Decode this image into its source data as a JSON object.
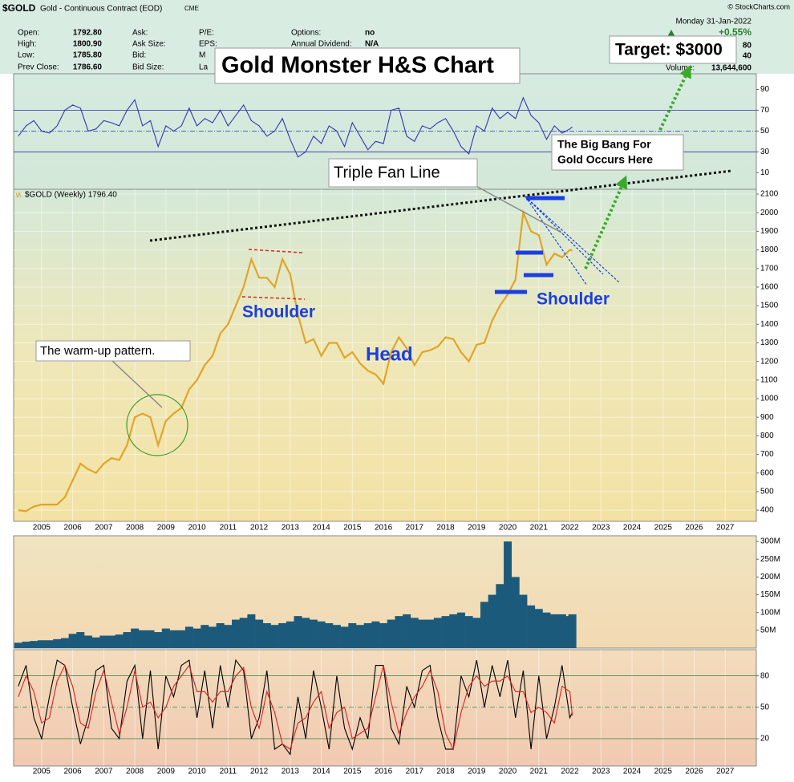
{
  "header": {
    "symbol": "$GOLD",
    "description": "Gold - Continuous Contract (EOD)",
    "exchange": "CME",
    "copyright": "© StockCharts.com",
    "date": "Monday  31-Jan-2022",
    "change": "+0.55%",
    "quote": [
      [
        "Open:",
        "1792.80"
      ],
      [
        "High:",
        "1800.90"
      ],
      [
        "Low:",
        "1785.80"
      ],
      [
        "Prev Close:",
        "1786.60"
      ]
    ],
    "quote2": [
      "Ask:",
      "Ask Size:",
      "Bid:",
      "Bid Size:"
    ],
    "quote3": [
      "P/E:",
      "EPS:",
      "M",
      "La"
    ],
    "quote4": [
      [
        "Options:",
        "no"
      ],
      [
        "Annual Dividend:",
        "N/A"
      ]
    ],
    "right": [
      "80",
      "40"
    ],
    "volume_label": "Volume:",
    "volume": "13,644,600"
  },
  "chart_data": [
    {
      "type": "line",
      "ylim": [
        -6,
        105
      ],
      "yticks": [
        10,
        30,
        50,
        70,
        90
      ],
      "hlines": [
        70,
        50,
        30
      ],
      "hline_color": "#3030a0",
      "xlim": [
        2004.1,
        2028.0
      ],
      "x": [
        2004.25,
        2004.5,
        2004.75,
        2005,
        2005.25,
        2005.5,
        2005.75,
        2006,
        2006.25,
        2006.5,
        2006.75,
        2007,
        2007.25,
        2007.5,
        2007.75,
        2008,
        2008.25,
        2008.5,
        2008.75,
        2009,
        2009.25,
        2009.5,
        2009.75,
        2010,
        2010.25,
        2010.5,
        2010.75,
        2011,
        2011.25,
        2011.5,
        2011.75,
        2012,
        2012.25,
        2012.5,
        2012.75,
        2013,
        2013.25,
        2013.5,
        2013.75,
        2014,
        2014.25,
        2014.5,
        2014.75,
        2015,
        2015.25,
        2015.5,
        2015.75,
        2016,
        2016.25,
        2016.5,
        2016.75,
        2017,
        2017.25,
        2017.5,
        2017.75,
        2018,
        2018.25,
        2018.5,
        2018.75,
        2019,
        2019.25,
        2019.5,
        2019.75,
        2020,
        2020.25,
        2020.5,
        2020.75,
        2021,
        2021.25,
        2021.5,
        2021.75,
        2022,
        2022.08
      ],
      "series": [
        {
          "color": "#3535b5",
          "values": [
            45,
            55,
            60,
            50,
            48,
            55,
            70,
            75,
            72,
            50,
            52,
            60,
            58,
            55,
            70,
            80,
            55,
            60,
            35,
            55,
            50,
            55,
            72,
            55,
            62,
            58,
            70,
            55,
            65,
            75,
            60,
            55,
            45,
            50,
            62,
            42,
            25,
            30,
            45,
            38,
            55,
            50,
            35,
            58,
            45,
            32,
            40,
            38,
            70,
            72,
            45,
            40,
            55,
            52,
            58,
            62,
            50,
            35,
            28,
            55,
            50,
            72,
            62,
            68,
            62,
            82,
            65,
            58,
            42,
            55,
            48,
            52,
            54
          ]
        }
      ]
    },
    {
      "type": "line",
      "title": "Gold Monster H&S Chart",
      "ylim": [
        340,
        2126
      ],
      "xlim": [
        2004.1,
        2028.0
      ],
      "grid": true,
      "yticks": [
        400,
        500,
        600,
        700,
        800,
        900,
        1000,
        1100,
        1200,
        1300,
        1400,
        1500,
        1600,
        1700,
        1800,
        1900,
        2000,
        2100
      ],
      "xticks": [
        2005,
        2006,
        2007,
        2008,
        2009,
        2010,
        2011,
        2012,
        2013,
        2014,
        2015,
        2016,
        2017,
        2018,
        2019,
        2020,
        2021,
        2022,
        2023,
        2024,
        2025,
        2026,
        2027
      ],
      "x": [
        2004.25,
        2004.5,
        2004.75,
        2005,
        2005.25,
        2005.5,
        2005.75,
        2006,
        2006.25,
        2006.5,
        2006.75,
        2007,
        2007.25,
        2007.5,
        2007.75,
        2008,
        2008.25,
        2008.5,
        2008.75,
        2009,
        2009.25,
        2009.5,
        2009.75,
        2010,
        2010.25,
        2010.5,
        2010.75,
        2011,
        2011.25,
        2011.5,
        2011.75,
        2012,
        2012.25,
        2012.5,
        2012.75,
        2013,
        2013.25,
        2013.5,
        2013.75,
        2014,
        2014.25,
        2014.5,
        2014.75,
        2015,
        2015.25,
        2015.5,
        2015.75,
        2016,
        2016.25,
        2016.5,
        2016.75,
        2017,
        2017.25,
        2017.5,
        2017.75,
        2018,
        2018.25,
        2018.5,
        2018.75,
        2019,
        2019.25,
        2019.5,
        2019.75,
        2020,
        2020.25,
        2020.5,
        2020.75,
        2021,
        2021.25,
        2021.5,
        2021.75,
        2022,
        2022.08
      ],
      "series": [
        {
          "name": "$GOLD (Weekly) 1796.40",
          "color": "#e0a528",
          "values": [
            400,
            395,
            420,
            430,
            430,
            430,
            470,
            560,
            650,
            620,
            600,
            650,
            680,
            670,
            750,
            900,
            920,
            900,
            750,
            880,
            920,
            950,
            1050,
            1100,
            1180,
            1230,
            1350,
            1400,
            1500,
            1600,
            1750,
            1650,
            1650,
            1600,
            1750,
            1670,
            1450,
            1300,
            1320,
            1230,
            1300,
            1300,
            1220,
            1250,
            1190,
            1150,
            1130,
            1080,
            1250,
            1330,
            1270,
            1180,
            1250,
            1260,
            1280,
            1330,
            1320,
            1250,
            1200,
            1290,
            1300,
            1420,
            1500,
            1560,
            1640,
            2000,
            1900,
            1880,
            1720,
            1780,
            1760,
            1800,
            1796.4
          ]
        }
      ],
      "annotations": [
        "Target: $3000",
        "The Big Bang For",
        "Gold Occurs Here",
        "Triple Fan Line",
        "The warm-up pattern.",
        "Shoulder",
        "Head",
        "Shoulder"
      ]
    },
    {
      "type": "bar",
      "ylim": [
        0,
        316000000
      ],
      "xlim": [
        2004.1,
        2028.0
      ],
      "color": "#1c5a7c",
      "yticks": [
        {
          "value": 50000000,
          "label": "50M"
        },
        {
          "value": 100000000,
          "label": "100M"
        },
        {
          "value": 150000000,
          "label": "150M"
        },
        {
          "value": 200000000,
          "label": "200M"
        },
        {
          "value": 250000000,
          "label": "250M"
        },
        {
          "value": 300000000,
          "label": "300M"
        }
      ],
      "x": [
        2004.25,
        2004.5,
        2004.75,
        2005,
        2005.25,
        2005.5,
        2005.75,
        2006,
        2006.25,
        2006.5,
        2006.75,
        2007,
        2007.25,
        2007.5,
        2007.75,
        2008,
        2008.25,
        2008.5,
        2008.75,
        2009,
        2009.25,
        2009.5,
        2009.75,
        2010,
        2010.25,
        2010.5,
        2010.75,
        2011,
        2011.25,
        2011.5,
        2011.75,
        2012,
        2012.25,
        2012.5,
        2012.75,
        2013,
        2013.25,
        2013.5,
        2013.75,
        2014,
        2014.25,
        2014.5,
        2014.75,
        2015,
        2015.25,
        2015.5,
        2015.75,
        2016,
        2016.25,
        2016.5,
        2016.75,
        2017,
        2017.25,
        2017.5,
        2017.75,
        2018,
        2018.25,
        2018.5,
        2018.75,
        2019,
        2019.25,
        2019.5,
        2019.75,
        2020,
        2020.25,
        2020.5,
        2020.75,
        2021,
        2021.25,
        2021.5,
        2021.75,
        2022,
        2022.08
      ],
      "values": [
        15000000,
        18000000,
        20000000,
        22000000,
        22000000,
        25000000,
        28000000,
        40000000,
        45000000,
        35000000,
        30000000,
        35000000,
        35000000,
        38000000,
        45000000,
        55000000,
        50000000,
        50000000,
        45000000,
        55000000,
        50000000,
        50000000,
        60000000,
        55000000,
        65000000,
        60000000,
        70000000,
        65000000,
        80000000,
        85000000,
        95000000,
        80000000,
        70000000,
        65000000,
        70000000,
        75000000,
        90000000,
        85000000,
        80000000,
        75000000,
        70000000,
        65000000,
        60000000,
        70000000,
        65000000,
        70000000,
        75000000,
        70000000,
        80000000,
        90000000,
        95000000,
        85000000,
        80000000,
        80000000,
        85000000,
        90000000,
        95000000,
        100000000,
        90000000,
        85000000,
        130000000,
        150000000,
        180000000,
        300000000,
        200000000,
        150000000,
        120000000,
        110000000,
        100000000,
        95000000,
        95000000,
        90000000,
        95000000
      ]
    },
    {
      "type": "line",
      "ylim": [
        -6,
        105
      ],
      "yticks": [
        20,
        50,
        80
      ],
      "hlines": [
        80,
        50,
        20
      ],
      "hline_color": "#2e7d32",
      "xlim": [
        2004.1,
        2028.0
      ],
      "grid": true,
      "xticks": [
        2005,
        2006,
        2007,
        2008,
        2009,
        2010,
        2011,
        2012,
        2013,
        2014,
        2015,
        2016,
        2017,
        2018,
        2019,
        2020,
        2021,
        2022,
        2023,
        2024,
        2025,
        2026,
        2027
      ],
      "x": [
        2004.25,
        2004.5,
        2004.75,
        2005,
        2005.25,
        2005.5,
        2005.75,
        2006,
        2006.25,
        2006.5,
        2006.75,
        2007,
        2007.25,
        2007.5,
        2007.75,
        2008,
        2008.25,
        2008.5,
        2008.75,
        2009,
        2009.25,
        2009.5,
        2009.75,
        2010,
        2010.25,
        2010.5,
        2010.75,
        2011,
        2011.25,
        2011.5,
        2011.75,
        2012,
        2012.25,
        2012.5,
        2012.75,
        2013,
        2013.25,
        2013.5,
        2013.75,
        2014,
        2014.25,
        2014.5,
        2014.75,
        2015,
        2015.25,
        2015.5,
        2015.75,
        2016,
        2016.25,
        2016.5,
        2016.75,
        2017,
        2017.25,
        2017.5,
        2017.75,
        2018,
        2018.25,
        2018.5,
        2018.75,
        2019,
        2019.25,
        2019.5,
        2019.75,
        2020,
        2020.25,
        2020.5,
        2020.75,
        2021,
        2021.25,
        2021.5,
        2021.75,
        2022,
        2022.08
      ],
      "series": [
        {
          "color": "#000000",
          "values": [
            70,
            90,
            40,
            20,
            60,
            95,
            90,
            50,
            15,
            40,
            85,
            90,
            30,
            20,
            75,
            90,
            20,
            85,
            10,
            80,
            60,
            90,
            95,
            40,
            85,
            30,
            90,
            50,
            95,
            85,
            20,
            40,
            85,
            10,
            15,
            5,
            60,
            20,
            85,
            50,
            10,
            80,
            30,
            10,
            40,
            20,
            90,
            90,
            30,
            15,
            70,
            50,
            85,
            90,
            40,
            10,
            10,
            80,
            60,
            95,
            50,
            90,
            60,
            95,
            40,
            85,
            10,
            80,
            20,
            50,
            90,
            40,
            45
          ]
        },
        {
          "color": "#dd2020",
          "values": [
            60,
            80,
            65,
            35,
            40,
            75,
            90,
            70,
            35,
            30,
            65,
            85,
            55,
            25,
            50,
            85,
            50,
            55,
            40,
            50,
            70,
            80,
            90,
            65,
            65,
            55,
            65,
            65,
            80,
            88,
            50,
            30,
            65,
            45,
            15,
            10,
            35,
            40,
            55,
            65,
            30,
            45,
            50,
            20,
            25,
            30,
            60,
            90,
            55,
            25,
            45,
            60,
            70,
            85,
            65,
            25,
            10,
            45,
            70,
            80,
            70,
            75,
            75,
            80,
            65,
            65,
            45,
            50,
            45,
            35,
            70,
            65,
            42
          ]
        }
      ]
    }
  ]
}
